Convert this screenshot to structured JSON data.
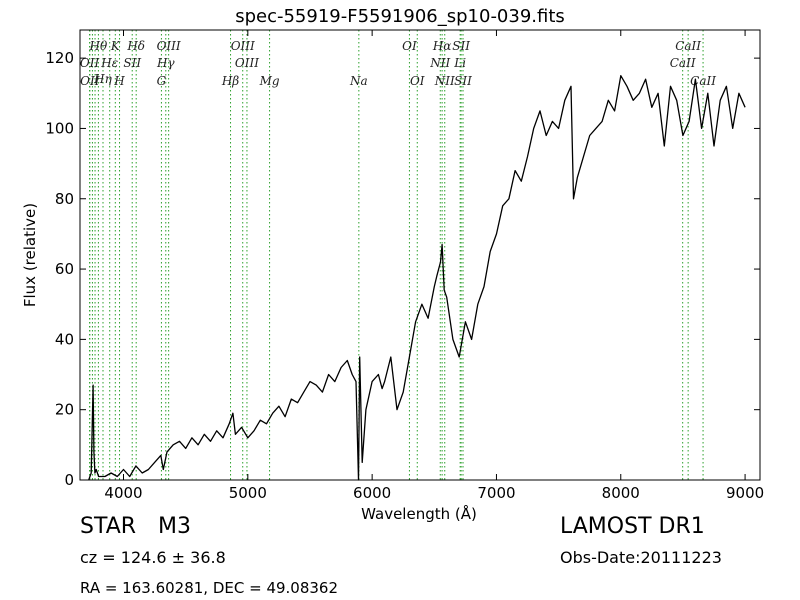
{
  "chart_data": {
    "type": "line",
    "title": "spec-55919-F5591906_sp10-039.fits",
    "xlabel": "Wavelength (Å)",
    "ylabel": "Flux (relative)",
    "xlim": [
      3650,
      9120
    ],
    "ylim": [
      0,
      128
    ],
    "x_ticks": [
      4000,
      5000,
      6000,
      7000,
      8000,
      9000
    ],
    "y_ticks": [
      0,
      20,
      40,
      60,
      80,
      100,
      120
    ],
    "grid": false,
    "series": [
      {
        "line_color": "#000000",
        "x": [
          3720,
          3740,
          3755,
          3762,
          3770,
          3780,
          3800,
          3850,
          3900,
          3950,
          4000,
          4050,
          4100,
          4150,
          4200,
          4250,
          4300,
          4320,
          4350,
          4400,
          4450,
          4500,
          4550,
          4600,
          4650,
          4700,
          4750,
          4800,
          4850,
          4880,
          4900,
          4950,
          5000,
          5050,
          5100,
          5150,
          5200,
          5250,
          5300,
          5350,
          5400,
          5450,
          5500,
          5550,
          5600,
          5650,
          5700,
          5750,
          5800,
          5840,
          5870,
          5890,
          5900,
          5920,
          5950,
          6000,
          6050,
          6080,
          6100,
          6150,
          6200,
          6250,
          6300,
          6350,
          6400,
          6450,
          6500,
          6520,
          6550,
          6563,
          6580,
          6600,
          6650,
          6700,
          6750,
          6800,
          6850,
          6900,
          6950,
          7000,
          7050,
          7100,
          7150,
          7200,
          7250,
          7300,
          7350,
          7400,
          7450,
          7500,
          7550,
          7600,
          7620,
          7650,
          7700,
          7750,
          7800,
          7850,
          7900,
          7950,
          8000,
          8050,
          8100,
          8150,
          8200,
          8250,
          8300,
          8350,
          8400,
          8450,
          8500,
          8550,
          8600,
          8650,
          8700,
          8750,
          8800,
          8850,
          8900,
          8950,
          9000
        ],
        "y": [
          0,
          2,
          27,
          8,
          2,
          3,
          1,
          1,
          2,
          1,
          3,
          1,
          4,
          2,
          3,
          5,
          7,
          3,
          8,
          10,
          11,
          9,
          12,
          10,
          13,
          11,
          14,
          12,
          16,
          19,
          13,
          15,
          12,
          14,
          17,
          16,
          19,
          21,
          18,
          23,
          22,
          25,
          28,
          27,
          25,
          30,
          28,
          32,
          34,
          30,
          28,
          0,
          35,
          5,
          20,
          28,
          30,
          26,
          28,
          35,
          20,
          25,
          35,
          45,
          50,
          46,
          55,
          58,
          62,
          67,
          54,
          52,
          40,
          35,
          45,
          40,
          50,
          55,
          65,
          70,
          78,
          80,
          88,
          85,
          92,
          100,
          105,
          98,
          102,
          100,
          108,
          112,
          80,
          86,
          92,
          98,
          100,
          102,
          108,
          105,
          115,
          112,
          108,
          110,
          114,
          106,
          110,
          95,
          112,
          108,
          98,
          102,
          114,
          100,
          110,
          95,
          108,
          112,
          100,
          110,
          106
        ]
      }
    ],
    "line_labels": [
      {
        "text": "Hθ",
        "x": 3798,
        "row": 1,
        "color": "#1a7f1a"
      },
      {
        "text": "K",
        "x": 3934,
        "row": 1,
        "color": "#1a7f1a"
      },
      {
        "text": "Hδ",
        "x": 4102,
        "row": 1,
        "color": "#1a7f1a"
      },
      {
        "text": "OIII",
        "x": 4363,
        "row": 1,
        "color": "#1a7f1a"
      },
      {
        "text": "OIII",
        "x": 4959,
        "row": 1,
        "color": "#1a7f1a"
      },
      {
        "text": "OI",
        "x": 6300,
        "row": 1,
        "color": "#1a7f1a"
      },
      {
        "text": "Hα",
        "x": 6563,
        "row": 1,
        "color": "#1a7f1a"
      },
      {
        "text": "SII",
        "x": 6716,
        "row": 1,
        "color": "#1a7f1a"
      },
      {
        "text": "CaII",
        "x": 8542,
        "row": 1,
        "color": "#1a7f1a"
      },
      {
        "text": "OII",
        "x": 3727,
        "row": 2,
        "color": "#1a7f1a"
      },
      {
        "text": "Hε",
        "x": 3889,
        "row": 2,
        "color": "#1a7f1a"
      },
      {
        "text": "SII",
        "x": 4070,
        "row": 2,
        "color": "#1a7f1a"
      },
      {
        "text": "Hγ",
        "x": 4340,
        "row": 2,
        "color": "#1a7f1a"
      },
      {
        "text": "OIII",
        "x": 4993,
        "row": 2,
        "color": "#1a7f1a"
      },
      {
        "text": "NII",
        "x": 6548,
        "row": 2,
        "color": "#1a7f1a"
      },
      {
        "text": "Li",
        "x": 6708,
        "row": 2,
        "color": "#1a7f1a"
      },
      {
        "text": "CaII",
        "x": 8498,
        "row": 2,
        "color": "#1a7f1a"
      },
      {
        "text": "Hη",
        "x": 3835,
        "row": 2.5,
        "color": "#1a7f1a"
      },
      {
        "text": "OII",
        "x": 3729,
        "row": 3,
        "color": "#1a7f1a"
      },
      {
        "text": "H",
        "x": 3968,
        "row": 3,
        "color": "#1a7f1a"
      },
      {
        "text": "G",
        "x": 4305,
        "row": 3,
        "color": "#1a7f1a"
      },
      {
        "text": "Hβ",
        "x": 4861,
        "row": 3,
        "color": "#1a7f1a"
      },
      {
        "text": "Mg",
        "x": 5175,
        "row": 3,
        "color": "#1a7f1a"
      },
      {
        "text": "Na",
        "x": 5893,
        "row": 3,
        "color": "#1a7f1a"
      },
      {
        "text": "OI",
        "x": 6363,
        "row": 3,
        "color": "#1a7f1a"
      },
      {
        "text": "NII",
        "x": 6584,
        "row": 3,
        "color": "#1a7f1a"
      },
      {
        "text": "SII",
        "x": 6731,
        "row": 3,
        "color": "#1a7f1a"
      },
      {
        "text": "CaII",
        "x": 8662,
        "row": 3,
        "color": "#1a7f1a"
      }
    ],
    "line_marks": [
      3727,
      3729,
      3750,
      3771,
      3798,
      3835,
      3889,
      3934,
      3968,
      4070,
      4102,
      4305,
      4340,
      4363,
      4861,
      4959,
      4993,
      5175,
      5893,
      6300,
      6363,
      6548,
      6563,
      6584,
      6708,
      6716,
      6731,
      8498,
      8542,
      8662
    ]
  },
  "info": {
    "class_label": "STAR",
    "subclass": "M3",
    "survey": "LAMOST DR1",
    "redshift": "cz = 124.6 ± 36.8",
    "obs_date": "Obs-Date:20111223",
    "coords": "RA = 163.60281, DEC = 49.08362"
  }
}
